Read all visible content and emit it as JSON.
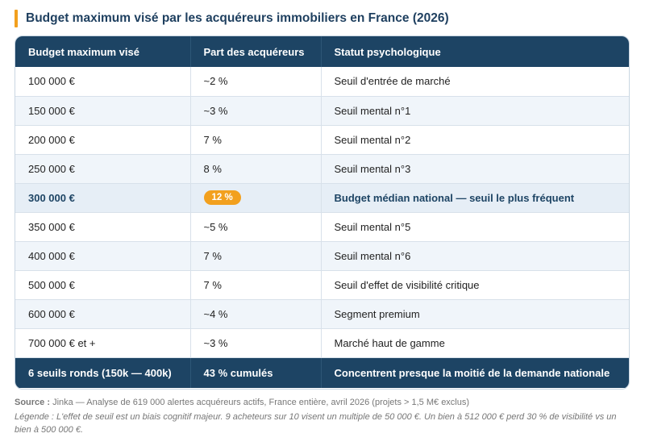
{
  "title": "Budget maximum visé par les acquéreurs immobiliers en France (2026)",
  "table": {
    "headers": [
      "Budget maximum visé",
      "Part des acquéreurs",
      "Statut psychologique"
    ],
    "rows": [
      {
        "budget": "100 000 €",
        "part": "~2 %",
        "statut": "Seuil d'entrée de marché"
      },
      {
        "budget": "150 000 €",
        "part": "~3 %",
        "statut": "Seuil mental n°1"
      },
      {
        "budget": "200 000 €",
        "part": "7 %",
        "statut": "Seuil mental n°2"
      },
      {
        "budget": "250 000 €",
        "part": "8 %",
        "statut": "Seuil mental n°3"
      },
      {
        "budget": "300 000 €",
        "part": "12 %",
        "statut": "Budget médian national — seuil le plus fréquent"
      },
      {
        "budget": "350 000 €",
        "part": "~5 %",
        "statut": "Seuil mental n°5"
      },
      {
        "budget": "400 000 €",
        "part": "7 %",
        "statut": "Seuil mental n°6"
      },
      {
        "budget": "500 000 €",
        "part": "7 %",
        "statut": "Seuil d'effet de visibilité critique"
      },
      {
        "budget": "600 000 €",
        "part": "~4 %",
        "statut": "Segment premium"
      },
      {
        "budget": "700 000 € et +",
        "part": "~3 %",
        "statut": "Marché haut de gamme"
      }
    ],
    "footer": [
      "6 seuils ronds (150k — 400k)",
      "43 % cumulés",
      "Concentrent presque la moitié de la demande nationale"
    ]
  },
  "source_label": "Source :",
  "source_text": " Jinka — Analyse de 619 000 alertes acquéreurs actifs, France entière, avril 2026 (projets > 1,5 M€ exclus)",
  "legend_text": "Légende : L'effet de seuil est un biais cognitif majeur. 9 acheteurs sur 10 visent un multiple de 50 000 €. Un bien à 512 000 € perd 30 % de visibilité vs un bien à 500 000 €.",
  "colors": {
    "header": "#1d4464",
    "accent": "#f2a01e",
    "stripe": "#f0f5fa"
  }
}
